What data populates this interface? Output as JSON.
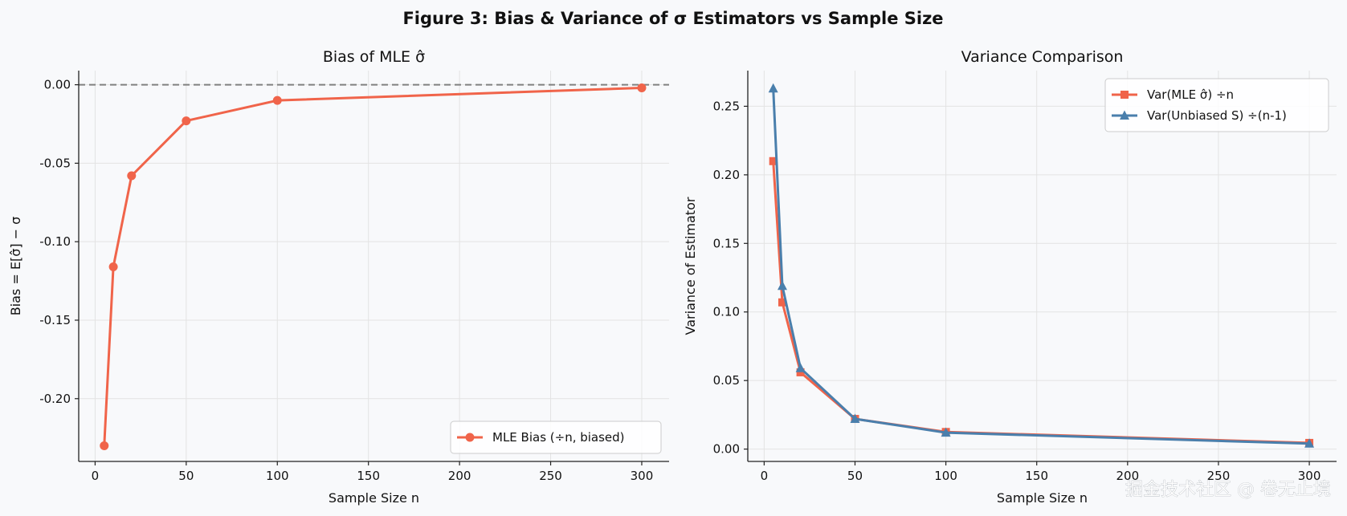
{
  "figure": {
    "title": "Figure 3: Bias & Variance of σ Estimators vs Sample Size",
    "watermark": "掘金技术社区 @ 卷无止境"
  },
  "colors": {
    "mle": "#f0644a",
    "unbiased": "#4a7fac",
    "zero_line": "#808080",
    "grid": "#e3e3e3",
    "axes_bg": "#f8f9fb"
  },
  "chart_data": [
    {
      "type": "line",
      "title": "Bias of MLE σ̂",
      "xlabel": "Sample Size n",
      "ylabel": "Bias = E[σ̂] − σ",
      "xlim": [
        -9,
        315
      ],
      "ylim": [
        -0.24,
        0.009
      ],
      "xticks": [
        0,
        50,
        100,
        150,
        200,
        250,
        300
      ],
      "xtick_labels": [
        "0",
        "50",
        "100",
        "150",
        "200",
        "250",
        "300"
      ],
      "yticks": [
        0.0,
        -0.05,
        -0.1,
        -0.15,
        -0.2
      ],
      "ytick_labels": [
        "0.00",
        "-0.05",
        "-0.10",
        "-0.15",
        "-0.20"
      ],
      "reference_line": {
        "y": 0,
        "style": "dashed"
      },
      "grid": true,
      "legend": "lower right",
      "series": [
        {
          "name": "MLE Bias (÷n, biased)",
          "marker": "circle",
          "color_key": "mle",
          "x": [
            5,
            10,
            20,
            50,
            100,
            300
          ],
          "y": [
            -0.23,
            -0.116,
            -0.058,
            -0.023,
            -0.01,
            -0.002
          ]
        }
      ]
    },
    {
      "type": "line",
      "title": "Variance Comparison",
      "xlabel": "Sample Size n",
      "ylabel": "Variance of Estimator",
      "xlim": [
        -9,
        315
      ],
      "ylim": [
        -0.009,
        0.276
      ],
      "xticks": [
        0,
        50,
        100,
        150,
        200,
        250,
        300
      ],
      "xtick_labels": [
        "0",
        "50",
        "100",
        "150",
        "200",
        "250",
        "300"
      ],
      "yticks": [
        0.0,
        0.05,
        0.1,
        0.15,
        0.2,
        0.25
      ],
      "ytick_labels": [
        "0.00",
        "0.05",
        "0.10",
        "0.15",
        "0.20",
        "0.25"
      ],
      "grid": true,
      "legend": "upper right",
      "series": [
        {
          "name": "Var(MLE σ̂)  ÷n",
          "marker": "square",
          "color_key": "mle",
          "x": [
            5,
            10,
            20,
            50,
            100,
            300
          ],
          "y": [
            0.21,
            0.107,
            0.056,
            0.022,
            0.0125,
            0.0045
          ]
        },
        {
          "name": "Var(Unbiased S)  ÷(n-1)",
          "marker": "triangle",
          "color_key": "unbiased",
          "x": [
            5,
            10,
            20,
            50,
            100,
            300
          ],
          "y": [
            0.263,
            0.119,
            0.059,
            0.022,
            0.012,
            0.004
          ]
        }
      ]
    }
  ]
}
